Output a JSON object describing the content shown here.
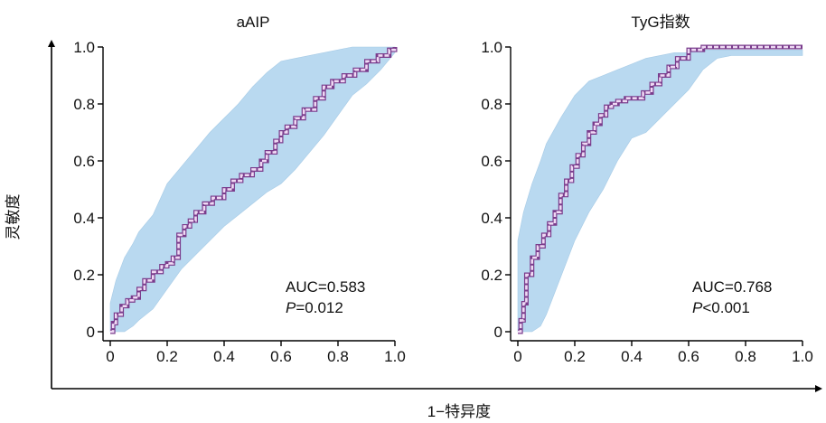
{
  "figure": {
    "ylabel": "灵敏度",
    "xlabel": "1−特异度"
  },
  "colors": {
    "band": "#b9d9f0",
    "curve_main": "#7a3c8c",
    "curve_light": "#efd9f4",
    "axis": "#000000"
  },
  "chart_data": [
    {
      "type": "line",
      "title": "aAIP",
      "xlim": [
        0,
        1
      ],
      "ylim": [
        0,
        1
      ],
      "xticks": [
        "0",
        "0.2",
        "0.4",
        "0.6",
        "0.8",
        "1.0"
      ],
      "yticks": [
        "0",
        "0.2",
        "0.4",
        "0.6",
        "0.8",
        "1.0"
      ],
      "series": [
        {
          "x": [
            0,
            0.01,
            0.02,
            0.04,
            0.06,
            0.08,
            0.1,
            0.12,
            0.15,
            0.18,
            0.2,
            0.22,
            0.24,
            0.26,
            0.28,
            0.3,
            0.33,
            0.36,
            0.4,
            0.43,
            0.46,
            0.5,
            0.53,
            0.55,
            0.58,
            0.6,
            0.62,
            0.65,
            0.68,
            0.72,
            0.75,
            0.78,
            0.82,
            0.86,
            0.9,
            0.94,
            0.98,
            1.0
          ],
          "y": [
            0,
            0.03,
            0.06,
            0.09,
            0.11,
            0.12,
            0.15,
            0.18,
            0.21,
            0.23,
            0.24,
            0.26,
            0.34,
            0.37,
            0.39,
            0.42,
            0.45,
            0.47,
            0.5,
            0.53,
            0.55,
            0.57,
            0.6,
            0.63,
            0.67,
            0.7,
            0.72,
            0.75,
            0.78,
            0.82,
            0.86,
            0.88,
            0.9,
            0.92,
            0.95,
            0.97,
            0.99,
            1.0
          ]
        }
      ],
      "band": {
        "x": [
          0,
          0.02,
          0.05,
          0.08,
          0.1,
          0.15,
          0.2,
          0.25,
          0.3,
          0.35,
          0.4,
          0.45,
          0.5,
          0.55,
          0.6,
          0.65,
          0.7,
          0.75,
          0.8,
          0.85,
          0.9,
          0.95,
          1.0
        ],
        "lower": [
          0,
          0,
          0,
          0.02,
          0.04,
          0.08,
          0.15,
          0.22,
          0.27,
          0.32,
          0.37,
          0.41,
          0.45,
          0.49,
          0.52,
          0.57,
          0.63,
          0.69,
          0.76,
          0.83,
          0.87,
          0.92,
          0.98
        ],
        "upper": [
          0.1,
          0.18,
          0.26,
          0.31,
          0.35,
          0.41,
          0.52,
          0.58,
          0.64,
          0.7,
          0.75,
          0.8,
          0.86,
          0.91,
          0.95,
          0.96,
          0.97,
          0.98,
          0.99,
          1.0,
          1.0,
          1.0,
          1.0
        ]
      },
      "annotations": {
        "auc": "AUC=0.583",
        "p_italic": "P",
        "p_rest": "=0.012"
      }
    },
    {
      "type": "line",
      "title": "TyG指数",
      "xlim": [
        0,
        1
      ],
      "ylim": [
        0,
        1
      ],
      "xticks": [
        "0",
        "0.2",
        "0.4",
        "0.6",
        "0.8",
        "1.0"
      ],
      "yticks": [
        "0",
        "0.2",
        "0.4",
        "0.6",
        "0.8",
        "1.0"
      ],
      "series": [
        {
          "x": [
            0,
            0.01,
            0.02,
            0.03,
            0.05,
            0.07,
            0.09,
            0.11,
            0.13,
            0.15,
            0.17,
            0.19,
            0.21,
            0.23,
            0.25,
            0.27,
            0.29,
            0.31,
            0.33,
            0.35,
            0.38,
            0.41,
            0.44,
            0.47,
            0.5,
            0.53,
            0.56,
            0.6,
            0.65,
            0.7,
            0.8,
            0.9,
            1.0
          ],
          "y": [
            0,
            0.04,
            0.1,
            0.2,
            0.26,
            0.3,
            0.34,
            0.38,
            0.42,
            0.48,
            0.53,
            0.58,
            0.62,
            0.66,
            0.7,
            0.73,
            0.76,
            0.79,
            0.8,
            0.81,
            0.82,
            0.82,
            0.84,
            0.87,
            0.9,
            0.93,
            0.96,
            0.99,
            1.0,
            1.0,
            1.0,
            1.0,
            1.0
          ]
        }
      ],
      "band": {
        "x": [
          0,
          0.02,
          0.05,
          0.08,
          0.1,
          0.15,
          0.2,
          0.25,
          0.3,
          0.35,
          0.4,
          0.45,
          0.5,
          0.55,
          0.6,
          0.65,
          0.7,
          0.75,
          0.8,
          0.85,
          0.9,
          0.95,
          1.0
        ],
        "lower": [
          0,
          0,
          0,
          0.02,
          0.06,
          0.19,
          0.32,
          0.42,
          0.5,
          0.6,
          0.68,
          0.7,
          0.75,
          0.8,
          0.85,
          0.92,
          0.96,
          0.97,
          0.97,
          0.97,
          0.97,
          0.97,
          0.97
        ],
        "upper": [
          0.32,
          0.42,
          0.52,
          0.6,
          0.66,
          0.75,
          0.83,
          0.88,
          0.9,
          0.92,
          0.94,
          0.96,
          0.97,
          0.98,
          0.98,
          0.99,
          0.99,
          0.99,
          0.99,
          0.99,
          0.99,
          0.99,
          0.99
        ]
      },
      "annotations": {
        "auc": "AUC=0.768",
        "p_italic": "P",
        "p_rest": "<0.001"
      }
    }
  ]
}
